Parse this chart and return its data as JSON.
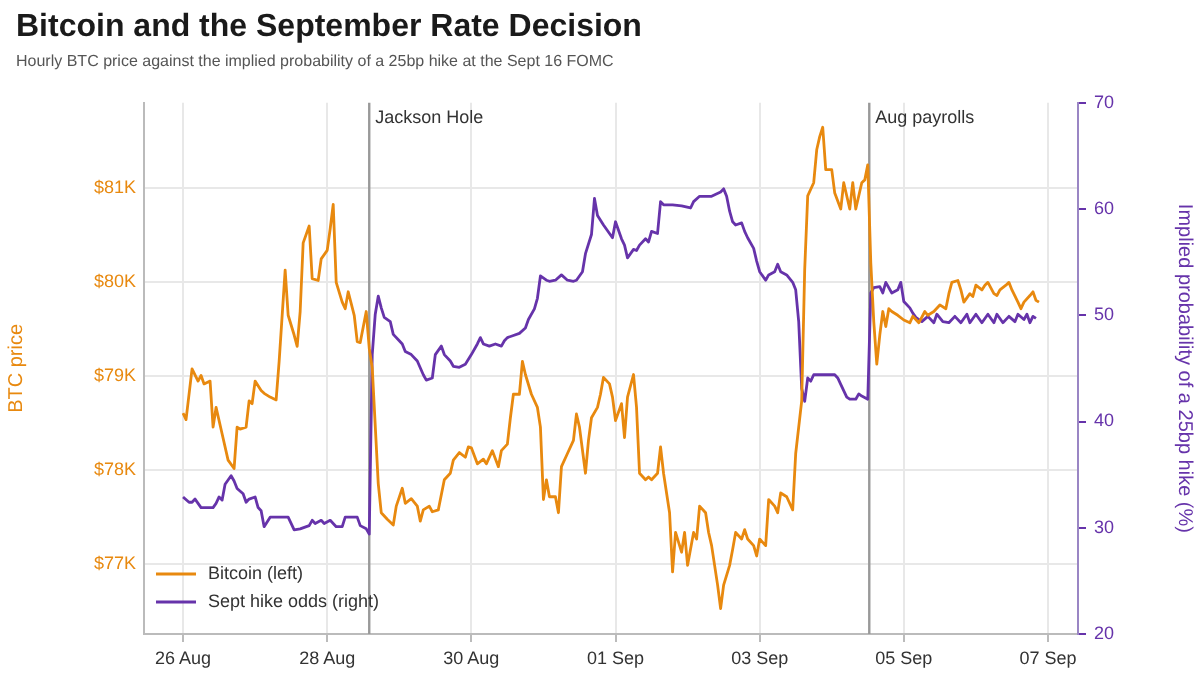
{
  "chart_data": {
    "type": "line",
    "title": "Bitcoin and the September Rate Decision",
    "subtitle": "Hourly BTC price against the implied probability of a 25bp hike at the Sept 16 FOMC",
    "ylabel": "BTC price",
    "y2label": "Implied probability of a 25bp hike (%)",
    "xlim": [
      "--08-25T11:00",
      "--09-07T10:00"
    ],
    "xticks": [
      {
        "value": "--08-26",
        "label": "26 Aug"
      },
      {
        "value": "--08-28",
        "label": "28 Aug"
      },
      {
        "value": "--08-30",
        "label": "30 Aug"
      },
      {
        "value": "--09-01",
        "label": "01 Sep"
      },
      {
        "value": "--09-03",
        "label": "03 Sep"
      },
      {
        "value": "--09-05",
        "label": "05 Sep"
      },
      {
        "value": "--09-07",
        "label": "07 Sep"
      }
    ],
    "ylim": [
      76260,
      81910
    ],
    "yticks": [
      {
        "value": 77000,
        "label": "$77K"
      },
      {
        "value": 78000,
        "label": "$78K"
      },
      {
        "value": 79000,
        "label": "$79K"
      },
      {
        "value": 80000,
        "label": "$80K"
      },
      {
        "value": 81000,
        "label": "$81K"
      }
    ],
    "y2lim": [
      20,
      70
    ],
    "y2ticks": [
      20,
      30,
      40,
      50,
      60,
      70
    ],
    "grid": true,
    "legend": "bottom left",
    "marker": "none",
    "line_style": "solid",
    "ref_lines": [
      {
        "axis": "x",
        "value": "--08-28T14:00",
        "label": "Jackson Hole",
        "color": "#999999"
      },
      {
        "axis": "x",
        "value": "--09-04T12:30",
        "label": "Aug payrolls",
        "color": "#999999"
      }
    ],
    "series": [
      {
        "name": "Bitcoin (left)",
        "color": "#e8890f",
        "x": [
          "--08-26T00:00",
          "--08-26T01:00",
          "--08-26T03:00",
          "--08-26T05:00",
          "--08-26T06:00",
          "--08-26T07:00",
          "--08-26T09:00",
          "--08-26T10:00",
          "--08-26T11:00",
          "--08-26T13:00",
          "--08-26T15:00",
          "--08-26T17:00",
          "--08-26T18:00",
          "--08-26T19:00",
          "--08-26T21:00",
          "--08-26T22:00",
          "--08-26T23:00",
          "--08-27T00:00",
          "--08-27T02:00",
          "--08-27T03:00",
          "--08-27T05:00",
          "--08-27T07:00",
          "--08-27T08:00",
          "--08-27T10:00",
          "--08-27T11:00",
          "--08-27T13:00",
          "--08-27T14:00",
          "--08-27T15:00",
          "--08-27T16:00",
          "--08-27T18:00",
          "--08-27T19:00",
          "--08-27T21:00",
          "--08-27T22:00",
          "--08-28T00:00",
          "--08-28T01:00",
          "--08-28T02:00",
          "--08-28T03:00",
          "--08-28T05:00",
          "--08-28T06:00",
          "--08-28T07:00",
          "--08-28T09:00",
          "--08-28T10:00",
          "--08-28T11:00",
          "--08-28T13:00",
          "--08-28T14:00",
          "--08-28T15:00",
          "--08-28T17:00",
          "--08-28T18:00",
          "--08-28T20:00",
          "--08-28T22:00",
          "--08-28T23:00",
          "--08-29T01:00",
          "--08-29T02:00",
          "--08-29T04:00",
          "--08-29T06:00",
          "--08-29T07:00",
          "--08-29T08:00",
          "--08-29T10:00",
          "--08-29T11:00",
          "--08-29T13:00",
          "--08-29T15:00",
          "--08-29T17:00",
          "--08-29T18:00",
          "--08-29T20:00",
          "--08-29T22:00",
          "--08-29T23:00",
          "--08-30T00:00",
          "--08-30T02:00",
          "--08-30T04:00",
          "--08-30T05:00",
          "--08-30T07:00",
          "--08-30T09:00",
          "--08-30T10:00",
          "--08-30T12:00",
          "--08-30T13:00",
          "--08-30T14:00",
          "--08-30T16:00",
          "--08-30T17:00",
          "--08-30T18:00",
          "--08-30T20:00",
          "--08-30T22:00",
          "--08-30T23:00",
          "--08-31T00:00",
          "--08-31T01:00",
          "--08-31T02:00",
          "--08-31T04:00",
          "--08-31T05:00",
          "--08-31T06:00",
          "--08-31T08:00",
          "--08-31T10:00",
          "--08-31T11:00",
          "--08-31T12:00",
          "--08-31T14:00",
          "--08-31T15:00",
          "--08-31T16:00",
          "--08-31T18:00",
          "--08-31T19:00",
          "--08-31T20:00",
          "--08-31T22:00",
          "--08-31T23:00",
          "--09-01T00:00",
          "--09-01T02:00",
          "--09-01T03:00",
          "--09-01T04:00",
          "--09-01T06:00",
          "--09-01T07:00",
          "--09-01T08:00",
          "--09-01T10:00",
          "--09-01T11:00",
          "--09-01T12:00",
          "--09-01T14:00",
          "--09-01T15:00",
          "--09-01T16:00",
          "--09-01T18:00",
          "--09-01T19:00",
          "--09-01T20:00",
          "--09-01T22:00",
          "--09-01T23:00",
          "--09-02T00:00",
          "--09-02T02:00",
          "--09-02T03:00",
          "--09-02T04:00",
          "--09-02T06:00",
          "--09-02T07:00",
          "--09-02T08:00",
          "--09-02T10:00",
          "--09-02T11:00",
          "--09-02T12:00",
          "--09-02T14:00",
          "--09-02T15:00",
          "--09-02T16:00",
          "--09-02T18:00",
          "--09-02T19:00",
          "--09-02T20:00",
          "--09-02T22:00",
          "--09-02T23:00",
          "--09-03T00:00",
          "--09-03T02:00",
          "--09-03T03:00",
          "--09-03T05:00",
          "--09-03T06:00",
          "--09-03T07:00",
          "--09-03T09:00",
          "--09-03T11:00",
          "--09-03T12:00",
          "--09-03T14:00",
          "--09-03T15:00",
          "--09-03T16:00",
          "--09-03T18:00",
          "--09-03T19:00",
          "--09-03T20:00",
          "--09-03T21:00",
          "--09-03T22:00",
          "--09-04T00:00",
          "--09-04T01:00",
          "--09-04T03:00",
          "--09-04T04:00",
          "--09-04T06:00",
          "--09-04T07:00",
          "--09-04T08:00",
          "--09-04T10:00",
          "--09-04T11:00",
          "--09-04T12:00",
          "--09-04T13:00",
          "--09-04T14:00",
          "--09-04T15:00",
          "--09-04T16:00",
          "--09-04T17:00",
          "--09-04T18:00",
          "--09-04T19:00",
          "--09-04T20:00",
          "--09-04T22:00",
          "--09-05T00:00",
          "--09-05T02:00",
          "--09-05T03:00",
          "--09-05T05:00",
          "--09-05T07:00",
          "--09-05T08:00",
          "--09-05T10:00",
          "--09-05T12:00",
          "--09-05T14:00",
          "--09-05T15:00",
          "--09-05T16:00",
          "--09-05T18:00",
          "--09-05T19:00",
          "--09-05T20:00",
          "--09-05T22:00",
          "--09-05T23:00",
          "--09-06T00:00",
          "--09-06T02:00",
          "--09-06T03:00",
          "--09-06T04:00",
          "--09-06T06:00",
          "--09-06T07:00",
          "--09-06T08:00",
          "--09-06T10:00",
          "--09-06T11:00",
          "--09-06T12:00",
          "--09-06T14:00",
          "--09-06T15:00",
          "--09-06T16:00",
          "--09-06T18:00",
          "--09-06T19:00",
          "--09-06T20:00",
          "--09-06T21:00"
        ],
        "values": [
          78610,
          78540,
          79080,
          78950,
          79010,
          78920,
          78950,
          78460,
          78670,
          78390,
          78110,
          78020,
          78460,
          78440,
          78460,
          78740,
          78710,
          78950,
          78850,
          78820,
          78780,
          78750,
          79160,
          80130,
          79650,
          79440,
          79320,
          79690,
          80420,
          80600,
          80040,
          80020,
          80250,
          80340,
          80570,
          80830,
          80000,
          79790,
          79720,
          79900,
          79650,
          79370,
          79360,
          79690,
          79300,
          79090,
          77860,
          77550,
          77480,
          77420,
          77620,
          77810,
          77650,
          77700,
          77620,
          77460,
          77580,
          77620,
          77560,
          77580,
          77900,
          77970,
          78110,
          78190,
          78140,
          78250,
          78240,
          78070,
          78120,
          78070,
          78210,
          78040,
          78210,
          78280,
          78560,
          78810,
          78810,
          79160,
          79020,
          78810,
          78670,
          78460,
          77690,
          77900,
          77720,
          77720,
          77550,
          78040,
          78180,
          78320,
          78600,
          78460,
          77970,
          78320,
          78560,
          78670,
          78810,
          78990,
          78920,
          78780,
          78530,
          78710,
          78350,
          78780,
          79020,
          78670,
          77970,
          77900,
          77930,
          77900,
          77970,
          78250,
          77970,
          77550,
          76920,
          77340,
          77130,
          77340,
          76990,
          77340,
          77270,
          77620,
          77550,
          77340,
          77200,
          76780,
          76530,
          76780,
          76990,
          77160,
          77340,
          77270,
          77370,
          77270,
          77200,
          77090,
          77270,
          77200,
          77690,
          77620,
          77550,
          77760,
          77720,
          77580,
          78180,
          78740,
          80140,
          80920,
          81060,
          81410,
          81550,
          81650,
          81200,
          81200,
          80950,
          80780,
          81060,
          80780,
          81060,
          80780,
          81060,
          81090,
          81250,
          80210,
          79580,
          79130,
          79440,
          79690,
          79530,
          79720,
          79690,
          79650,
          79600,
          79570,
          79640,
          79570,
          79690,
          79650,
          79690,
          79760,
          79720,
          79880,
          80000,
          80020,
          79920,
          79790,
          79880,
          79850,
          79970,
          79920,
          79970,
          80000,
          79880,
          79860,
          79920,
          79970,
          80000,
          79920,
          79790,
          79720,
          79790,
          79860,
          79900,
          79810,
          79790
        ]
      },
      {
        "name": "Sept hike odds (right)",
        "color": "#6633aa",
        "axis": "y2",
        "x": [
          "--08-26T00:00",
          "--08-26T02:00",
          "--08-26T03:00",
          "--08-26T04:00",
          "--08-26T06:00",
          "--08-26T07:00",
          "--08-26T10:00",
          "--08-26T11:00",
          "--08-26T12:00",
          "--08-26T13:00",
          "--08-26T14:00",
          "--08-26T16:00",
          "--08-26T17:00",
          "--08-26T18:00",
          "--08-26T20:00",
          "--08-26T21:00",
          "--08-26T22:00",
          "--08-27T00:00",
          "--08-27T01:00",
          "--08-27T02:00",
          "--08-27T03:00",
          "--08-27T05:00",
          "--08-27T08:00",
          "--08-27T11:00",
          "--08-27T13:00",
          "--08-27T15:00",
          "--08-27T18:00",
          "--08-27T19:00",
          "--08-27T20:00",
          "--08-27T22:00",
          "--08-27T23:00",
          "--08-28T01:00",
          "--08-28T03:00",
          "--08-28T05:00",
          "--08-28T06:00",
          "--08-28T10:00",
          "--08-28T11:00",
          "--08-28T13:00",
          "--08-28T14:00",
          "--08-28T15:00",
          "--08-28T16:00",
          "--08-28T17:00",
          "--08-28T18:00",
          "--08-28T19:00",
          "--08-28T21:00",
          "--08-28T22:00",
          "--08-29T00:00",
          "--08-29T01:00",
          "--08-29T02:00",
          "--08-29T04:00",
          "--08-29T06:00",
          "--08-29T08:00",
          "--08-29T09:00",
          "--08-29T11:00",
          "--08-29T12:00",
          "--08-29T14:00",
          "--08-29T15:00",
          "--08-29T17:00",
          "--08-29T18:00",
          "--08-29T20:00",
          "--08-29T22:00",
          "--08-30T00:00",
          "--08-30T02:00",
          "--08-30T03:00",
          "--08-30T04:00",
          "--08-30T06:00",
          "--08-30T08:00",
          "--08-30T10:00",
          "--08-30T11:00",
          "--08-30T12:00",
          "--08-30T14:00",
          "--08-30T16:00",
          "--08-30T18:00",
          "--08-30T19:00",
          "--08-30T21:00",
          "--08-30T22:00",
          "--08-30T23:00",
          "--08-31T01:00",
          "--08-31T02:00",
          "--08-31T04:00",
          "--08-31T06:00",
          "--08-31T08:00",
          "--08-31T10:00",
          "--08-31T11:00",
          "--08-31T13:00",
          "--08-31T14:00",
          "--08-31T16:00",
          "--08-31T17:00",
          "--08-31T18:00",
          "--08-31T20:00",
          "--08-31T22:00",
          "--08-31T23:00",
          "--09-01T00:00",
          "--09-01T02:00",
          "--09-01T03:00",
          "--09-01T04:00",
          "--09-01T06:00",
          "--09-01T07:00",
          "--09-01T08:00",
          "--09-01T10:00",
          "--09-01T11:00",
          "--09-01T12:00",
          "--09-01T14:00",
          "--09-01T15:00",
          "--09-01T16:00",
          "--09-01T19:00",
          "--09-01T22:00",
          "--09-02T01:00",
          "--09-02T02:00",
          "--09-02T04:00",
          "--09-02T06:00",
          "--09-02T08:00",
          "--09-02T11:00",
          "--09-02T12:00",
          "--09-02T13:00",
          "--09-02T14:00",
          "--09-02T15:00",
          "--09-02T16:00",
          "--09-02T18:00",
          "--09-02T19:00",
          "--09-02T20:00",
          "--09-02T22:00",
          "--09-02T23:00",
          "--09-03T00:00",
          "--09-03T02:00",
          "--09-03T03:00",
          "--09-03T05:00",
          "--09-03T06:00",
          "--09-03T07:00",
          "--09-03T09:00",
          "--09-03T11:00",
          "--09-03T12:00",
          "--09-03T13:00",
          "--09-03T14:00",
          "--09-03T15:00",
          "--09-03T16:00",
          "--09-03T17:00",
          "--09-03T18:00",
          "--09-03T20:00",
          "--09-03T22:00",
          "--09-04T01:00",
          "--09-04T02:00",
          "--09-04T03:00",
          "--09-04T05:00",
          "--09-04T06:00",
          "--09-04T08:00",
          "--09-04T09:00",
          "--09-04T10:00",
          "--09-04T12:00",
          "--09-04T13:00",
          "--09-04T14:00",
          "--09-04T16:00",
          "--09-04T17:00",
          "--09-04T18:00",
          "--09-04T20:00",
          "--09-04T22:00",
          "--09-04T23:00",
          "--09-05T00:00",
          "--09-05T02:00",
          "--09-05T03:00",
          "--09-05T04:00",
          "--09-05T06:00",
          "--09-05T08:00",
          "--09-05T10:00",
          "--09-05T11:00",
          "--09-05T13:00",
          "--09-05T15:00",
          "--09-05T17:00",
          "--09-05T19:00",
          "--09-05T21:00",
          "--09-05T22:00",
          "--09-06T00:00",
          "--09-06T02:00",
          "--09-06T04:00",
          "--09-06T06:00",
          "--09-06T07:00",
          "--09-06T09:00",
          "--09-06T11:00",
          "--09-06T13:00",
          "--09-06T14:00",
          "--09-06T16:00",
          "--09-06T17:00",
          "--09-06T18:00",
          "--09-06T19:00",
          "--09-06T20:00"
        ],
        "values": [
          32.9,
          32.4,
          32.4,
          32.7,
          31.9,
          31.9,
          31.9,
          32.3,
          32.9,
          32.6,
          34.1,
          34.9,
          34.4,
          33.7,
          33.2,
          32.4,
          32.7,
          32.9,
          31.9,
          31.6,
          30.1,
          31.0,
          31.0,
          31.0,
          29.8,
          29.9,
          30.2,
          30.7,
          30.4,
          30.7,
          30.4,
          30.7,
          30.1,
          30.1,
          31.0,
          31.0,
          30.2,
          29.9,
          29.4,
          46.3,
          50.1,
          51.8,
          50.7,
          49.8,
          49.4,
          48.2,
          47.6,
          47.3,
          46.6,
          46.3,
          45.7,
          44.4,
          43.9,
          44.1,
          46.3,
          47.1,
          46.3,
          45.7,
          45.2,
          45.1,
          45.4,
          46.3,
          47.3,
          47.9,
          47.3,
          47.1,
          47.3,
          47.1,
          47.6,
          47.9,
          48.1,
          48.3,
          48.8,
          49.6,
          50.6,
          51.6,
          53.7,
          53.3,
          53.2,
          53.3,
          53.8,
          53.3,
          53.2,
          53.3,
          54.1,
          55.8,
          57.6,
          61.0,
          59.4,
          58.5,
          57.7,
          57.3,
          58.8,
          57.2,
          56.6,
          55.4,
          56.2,
          56.1,
          56.6,
          57.2,
          56.9,
          57.9,
          57.7,
          60.7,
          60.4,
          60.4,
          60.3,
          60.1,
          60.7,
          61.2,
          61.2,
          61.2,
          61.6,
          61.9,
          61.2,
          59.8,
          58.8,
          58.5,
          58.7,
          57.9,
          57.3,
          56.3,
          55.1,
          54.1,
          53.3,
          53.8,
          54.1,
          54.8,
          54.1,
          53.8,
          53.1,
          52.4,
          49.4,
          43.1,
          41.9,
          44.1,
          43.8,
          44.4,
          44.4,
          44.4,
          44.4,
          44.1,
          43.5,
          42.3,
          42.1,
          42.1,
          42.6,
          42.4,
          42.1,
          52.1,
          52.6,
          52.7,
          52.1,
          53.1,
          52.1,
          52.4,
          53.1,
          51.3,
          50.7,
          50.2,
          49.8,
          49.4,
          49.9,
          49.3,
          50.1,
          49.4,
          49.3,
          49.9,
          49.3,
          50.1,
          49.3,
          50.1,
          49.3,
          50.1,
          49.3,
          50.1,
          49.3,
          49.9,
          49.4,
          50.1,
          49.6,
          50.1,
          49.3,
          49.9,
          49.7
        ]
      }
    ]
  }
}
